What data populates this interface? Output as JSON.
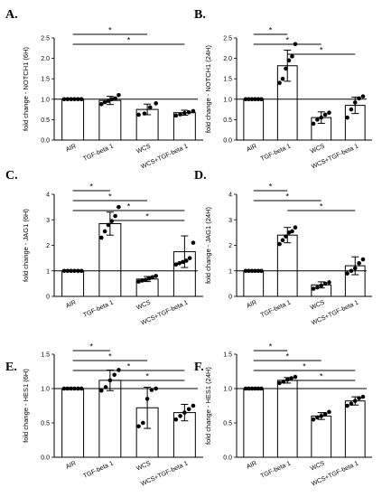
{
  "colors": {
    "ink": "#000000",
    "background": "#ffffff",
    "bar_fill": "#ffffff",
    "bracket": "#000000"
  },
  "chart_data": [
    {
      "panel": "A.",
      "type": "bar",
      "ylabel": "fold change - NOTCH1 (6H)",
      "ylim": [
        0,
        2.5
      ],
      "yticks": [
        "0.0",
        "0.5",
        "1.0",
        "1.5",
        "2.0",
        "2.5"
      ],
      "categories": [
        "AIR",
        "TGF-beta 1",
        "WCS",
        "WCS+TGF-beta 1"
      ],
      "values": [
        1.0,
        0.97,
        0.75,
        0.67
      ],
      "errors": [
        0.0,
        0.1,
        0.13,
        0.06
      ],
      "points": [
        [
          1,
          1,
          1,
          1,
          1,
          1
        ],
        [
          0.88,
          0.93,
          0.96,
          1.0,
          1.02,
          1.1
        ],
        [
          0.62,
          0.65,
          0.8,
          0.9
        ],
        [
          0.6,
          0.63,
          0.66,
          0.68,
          0.71
        ]
      ],
      "significance": [
        {
          "from": 0,
          "to": 2,
          "label": "*"
        },
        {
          "from": 0,
          "to": 3,
          "label": "*"
        }
      ],
      "reference_line": 1.0,
      "grid": false
    },
    {
      "panel": "B.",
      "type": "bar",
      "ylabel": "fold change - NOTCH1 (24H)",
      "ylim": [
        0,
        2.5
      ],
      "yticks": [
        "0.0",
        "0.5",
        "1.0",
        "1.5",
        "2.0",
        "2.5"
      ],
      "categories": [
        "AIR",
        "TGF-beta 1",
        "WCS",
        "WCS+TGF-beta 1"
      ],
      "values": [
        1.0,
        1.82,
        0.55,
        0.85
      ],
      "errors": [
        0.0,
        0.38,
        0.14,
        0.2
      ],
      "points": [
        [
          1,
          1,
          1,
          1,
          1,
          1
        ],
        [
          1.4,
          1.5,
          1.75,
          1.95,
          2.05,
          2.35
        ],
        [
          0.4,
          0.5,
          0.55,
          0.62,
          0.67
        ],
        [
          0.55,
          0.75,
          0.92,
          1.02,
          1.07
        ]
      ],
      "significance": [
        {
          "from": 0,
          "to": 1,
          "label": "*"
        },
        {
          "from": 0,
          "to": 2,
          "label": "*"
        },
        {
          "from": 1,
          "to": 3,
          "label": "*"
        }
      ],
      "reference_line": 1.0,
      "grid": false
    },
    {
      "panel": "C.",
      "type": "bar",
      "ylabel": "fold change - JAG1 (6H)",
      "ylim": [
        0,
        4
      ],
      "yticks": [
        "0",
        "1",
        "2",
        "3",
        "4"
      ],
      "categories": [
        "AIR",
        "TGF-beta 1",
        "WCS",
        "WCS+TGF-beta 1"
      ],
      "values": [
        1.0,
        2.85,
        0.68,
        1.75
      ],
      "errors": [
        0.0,
        0.45,
        0.1,
        0.62
      ],
      "points": [
        [
          1,
          1,
          1,
          1,
          1,
          1
        ],
        [
          2.3,
          2.55,
          2.8,
          2.95,
          3.15,
          3.5
        ],
        [
          0.58,
          0.62,
          0.65,
          0.7,
          0.75,
          0.8
        ],
        [
          1.25,
          1.3,
          1.35,
          1.4,
          1.5,
          2.1
        ]
      ],
      "significance": [
        {
          "from": 0,
          "to": 1,
          "label": "*"
        },
        {
          "from": 0,
          "to": 2,
          "label": "*"
        },
        {
          "from": 0,
          "to": 3,
          "label": "*"
        },
        {
          "from": 1,
          "to": 3,
          "label": "*"
        }
      ],
      "reference_line": 1.0,
      "grid": false
    },
    {
      "panel": "D.",
      "type": "bar",
      "ylabel": "fold change - JAG1 (24H)",
      "ylim": [
        0,
        4
      ],
      "yticks": [
        "0",
        "1",
        "2",
        "3",
        "4"
      ],
      "categories": [
        "AIR",
        "TGF-beta 1",
        "WCS",
        "WCS+TGF-beta 1"
      ],
      "values": [
        1.0,
        2.4,
        0.45,
        1.2
      ],
      "errors": [
        0.0,
        0.3,
        0.12,
        0.35
      ],
      "points": [
        [
          1,
          1,
          1,
          1,
          1,
          1
        ],
        [
          2.05,
          2.2,
          2.35,
          2.5,
          2.55,
          2.7
        ],
        [
          0.3,
          0.35,
          0.42,
          0.5,
          0.55
        ],
        [
          0.9,
          1.0,
          1.1,
          1.3,
          1.45
        ]
      ],
      "significance": [
        {
          "from": 0,
          "to": 1,
          "label": "*"
        },
        {
          "from": 0,
          "to": 2,
          "label": "*"
        },
        {
          "from": 1,
          "to": 3,
          "label": "*"
        }
      ],
      "reference_line": 1.0,
      "grid": false
    },
    {
      "panel": "E.",
      "type": "bar",
      "ylabel": "fold change - HES1 (6H)",
      "ylim": [
        0,
        1.5
      ],
      "yticks": [
        "0.0",
        "0.5",
        "1.0",
        "1.5"
      ],
      "categories": [
        "AIR",
        "TGF-beta 1",
        "WCS",
        "WCS+TGF-beta 1"
      ],
      "values": [
        1.0,
        1.12,
        0.72,
        0.65
      ],
      "errors": [
        0.0,
        0.15,
        0.3,
        0.12
      ],
      "points": [
        [
          1,
          1,
          1,
          1,
          1,
          1
        ],
        [
          0.97,
          1.02,
          1.12,
          1.2,
          1.27
        ],
        [
          0.45,
          0.5,
          0.85,
          0.98,
          1.0
        ],
        [
          0.55,
          0.6,
          0.65,
          0.7,
          0.75
        ]
      ],
      "significance": [
        {
          "from": 0,
          "to": 1,
          "label": "*"
        },
        {
          "from": 0,
          "to": 2,
          "label": "*"
        },
        {
          "from": 0,
          "to": 3,
          "label": "*"
        },
        {
          "from": 1,
          "to": 3,
          "label": "*"
        }
      ],
      "reference_line": 1.0,
      "grid": false
    },
    {
      "panel": "F.",
      "type": "bar",
      "ylabel": "fold change - HES1 (24H)",
      "ylim": [
        0,
        1.5
      ],
      "yticks": [
        "0.0",
        "0.5",
        "1.0",
        "1.5"
      ],
      "categories": [
        "AIR",
        "TGF-beta 1",
        "WCS",
        "WCS+TGF-beta 1"
      ],
      "values": [
        1.0,
        1.12,
        0.6,
        0.82
      ],
      "errors": [
        0.0,
        0.04,
        0.05,
        0.06
      ],
      "points": [
        [
          1,
          1,
          1,
          1,
          1,
          1
        ],
        [
          1.08,
          1.1,
          1.13,
          1.15,
          1.17
        ],
        [
          0.55,
          0.58,
          0.6,
          0.63,
          0.66
        ],
        [
          0.75,
          0.78,
          0.82,
          0.86,
          0.88
        ]
      ],
      "significance": [
        {
          "from": 0,
          "to": 1,
          "label": "*"
        },
        {
          "from": 0,
          "to": 2,
          "label": "*"
        },
        {
          "from": 0,
          "to": 3,
          "label": "*"
        },
        {
          "from": 1,
          "to": 3,
          "label": "*"
        }
      ],
      "reference_line": 1.0,
      "grid": false
    }
  ]
}
